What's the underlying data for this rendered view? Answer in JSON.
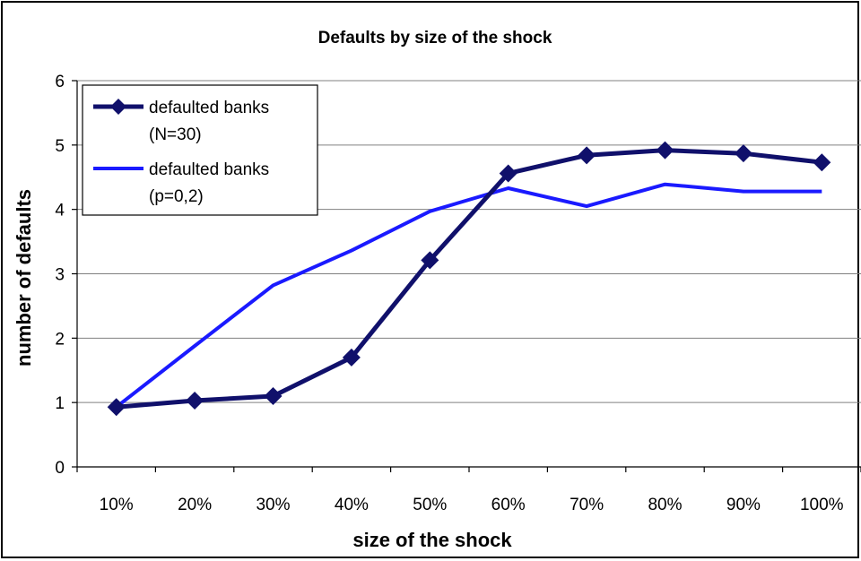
{
  "chart_data": {
    "type": "line",
    "title": "Defaults by size of the shock",
    "xlabel": "size of the shock",
    "ylabel": "number of defaults",
    "categories": [
      "10%",
      "20%",
      "30%",
      "40%",
      "50%",
      "60%",
      "70%",
      "80%",
      "90%",
      "100%"
    ],
    "y_ticks": [
      "0",
      "1",
      "2",
      "3",
      "4",
      "5",
      "6"
    ],
    "ylim": [
      0,
      6
    ],
    "grid": "horizontal",
    "legend_position": "top-left",
    "series": [
      {
        "name": "defaulted banks (N=30)",
        "legend_lines": [
          "defaulted banks",
          "(N=30)"
        ],
        "color": "#10106b",
        "marker": "diamond",
        "values": [
          0.93,
          1.03,
          1.1,
          1.7,
          3.21,
          4.56,
          4.84,
          4.92,
          4.87,
          4.73
        ]
      },
      {
        "name": "defaulted banks (p=0,2)",
        "legend_lines": [
          "defaulted banks",
          "(p=0,2)"
        ],
        "color": "#1a1aff",
        "marker": "none",
        "values": [
          0.93,
          1.88,
          2.82,
          3.36,
          3.97,
          4.33,
          4.05,
          4.39,
          4.28,
          4.28
        ]
      }
    ]
  }
}
